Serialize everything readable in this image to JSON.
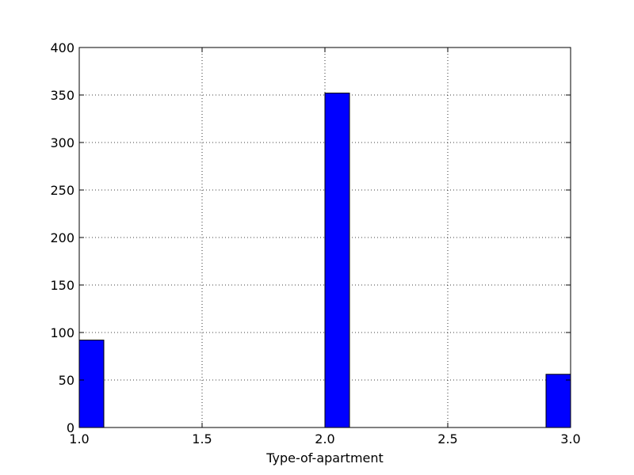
{
  "chart_data": {
    "type": "bar",
    "subtype": "histogram",
    "title": "",
    "xlabel": "Type-of-apartment",
    "ylabel": "",
    "xlim": [
      1.0,
      3.0
    ],
    "ylim": [
      0,
      400
    ],
    "xticks": [
      "1.0",
      "1.5",
      "2.0",
      "2.5",
      "3.0"
    ],
    "yticks": [
      "0",
      "50",
      "100",
      "150",
      "200",
      "250",
      "300",
      "350",
      "400"
    ],
    "grid": true,
    "legend": "none",
    "bar_color": "#0000ff",
    "bins": [
      {
        "x_start": 1.0,
        "x_end": 1.1,
        "value": 92
      },
      {
        "x_start": 1.1,
        "x_end": 1.2,
        "value": 0
      },
      {
        "x_start": 1.2,
        "x_end": 1.3,
        "value": 0
      },
      {
        "x_start": 1.3,
        "x_end": 1.4,
        "value": 0
      },
      {
        "x_start": 1.4,
        "x_end": 1.5,
        "value": 0
      },
      {
        "x_start": 1.5,
        "x_end": 1.6,
        "value": 0
      },
      {
        "x_start": 1.6,
        "x_end": 1.7,
        "value": 0
      },
      {
        "x_start": 1.7,
        "x_end": 1.8,
        "value": 0
      },
      {
        "x_start": 1.8,
        "x_end": 1.9,
        "value": 0
      },
      {
        "x_start": 1.9,
        "x_end": 2.0,
        "value": 0
      },
      {
        "x_start": 2.0,
        "x_end": 2.1,
        "value": 352
      },
      {
        "x_start": 2.1,
        "x_end": 2.2,
        "value": 0
      },
      {
        "x_start": 2.2,
        "x_end": 2.3,
        "value": 0
      },
      {
        "x_start": 2.3,
        "x_end": 2.4,
        "value": 0
      },
      {
        "x_start": 2.4,
        "x_end": 2.5,
        "value": 0
      },
      {
        "x_start": 2.5,
        "x_end": 2.6,
        "value": 0
      },
      {
        "x_start": 2.6,
        "x_end": 2.7,
        "value": 0
      },
      {
        "x_start": 2.7,
        "x_end": 2.8,
        "value": 0
      },
      {
        "x_start": 2.8,
        "x_end": 2.9,
        "value": 0
      },
      {
        "x_start": 2.9,
        "x_end": 3.0,
        "value": 56
      }
    ]
  }
}
